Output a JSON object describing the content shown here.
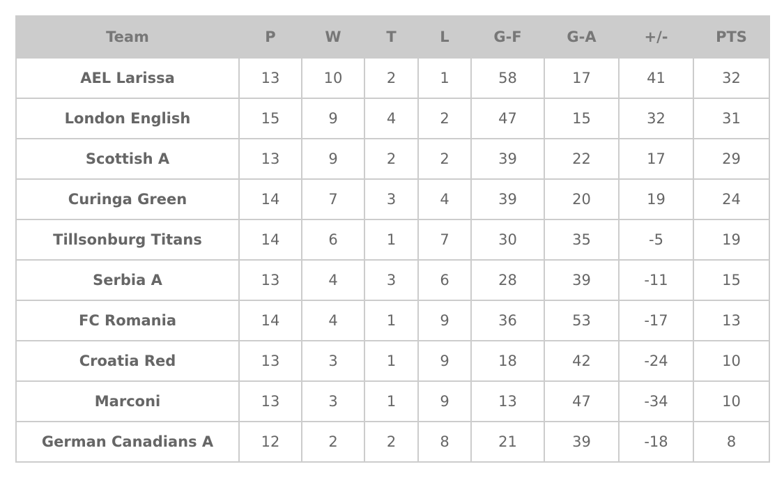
{
  "table": {
    "header": [
      "Team",
      "P",
      "W",
      "T",
      "L",
      "G-F",
      "G-A",
      "+/-",
      "PTS"
    ],
    "rows": [
      [
        "AEL Larissa",
        13,
        10,
        2,
        1,
        58,
        17,
        41,
        32
      ],
      [
        "London English",
        15,
        9,
        4,
        2,
        47,
        15,
        32,
        31
      ],
      [
        "Scottish A",
        13,
        9,
        2,
        2,
        39,
        22,
        17,
        29
      ],
      [
        "Curinga Green",
        14,
        7,
        3,
        4,
        39,
        20,
        19,
        24
      ],
      [
        "Tillsonburg Titans",
        14,
        6,
        1,
        7,
        30,
        35,
        -5,
        19
      ],
      [
        "Serbia A",
        13,
        4,
        3,
        6,
        28,
        39,
        -11,
        15
      ],
      [
        "FC Romania",
        14,
        4,
        1,
        9,
        36,
        53,
        -17,
        13
      ],
      [
        "Croatia Red",
        13,
        3,
        1,
        9,
        18,
        42,
        -24,
        10
      ],
      [
        "Marconi",
        13,
        3,
        1,
        9,
        13,
        47,
        -34,
        10
      ],
      [
        "German Canadians A",
        12,
        2,
        2,
        8,
        21,
        39,
        -18,
        8
      ]
    ]
  }
}
